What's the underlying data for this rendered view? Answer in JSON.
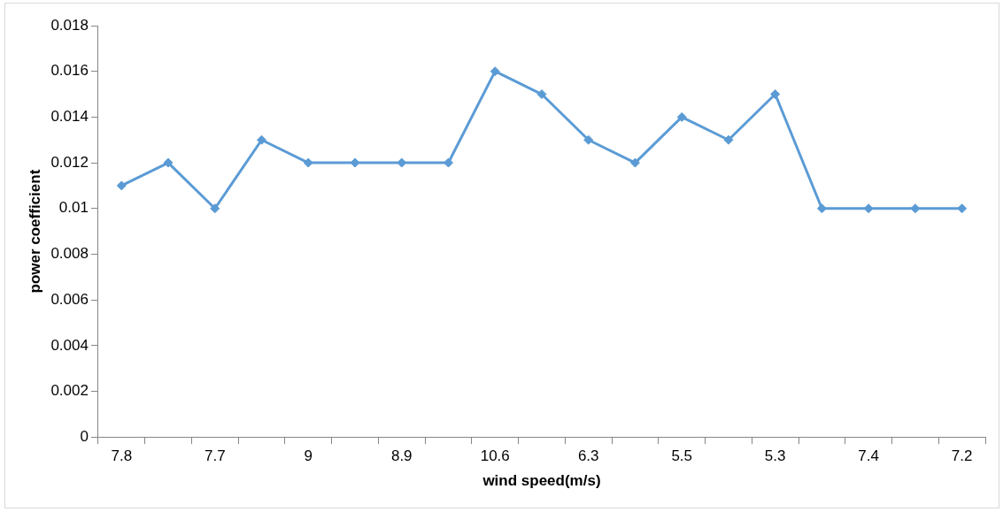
{
  "chart_data": {
    "type": "line",
    "xlabel": "wind speed(m/s)",
    "ylabel": "power coefficient",
    "categories": [
      "7.8",
      null,
      "7.7",
      null,
      "9",
      null,
      "8.9",
      null,
      "10.6",
      null,
      "6.3",
      null,
      "5.5",
      null,
      "5.3",
      null,
      "7.4",
      null,
      "7.2"
    ],
    "series": [
      {
        "color": "#5b9bd5",
        "values": [
          0.011,
          0.012,
          0.01,
          0.013,
          0.012,
          0.012,
          0.012,
          0.012,
          0.016,
          0.015,
          0.013,
          0.012,
          0.014,
          0.013,
          0.015,
          0.01,
          0.01,
          0.01,
          0.01
        ]
      }
    ],
    "ylim": [
      0,
      0.018
    ],
    "yticks": [
      0,
      0.002,
      0.004,
      0.006,
      0.008,
      0.01,
      0.012,
      0.014,
      0.016,
      0.018
    ],
    "grid": false,
    "legend": false,
    "marker": "diamond",
    "line_style": "solid"
  }
}
